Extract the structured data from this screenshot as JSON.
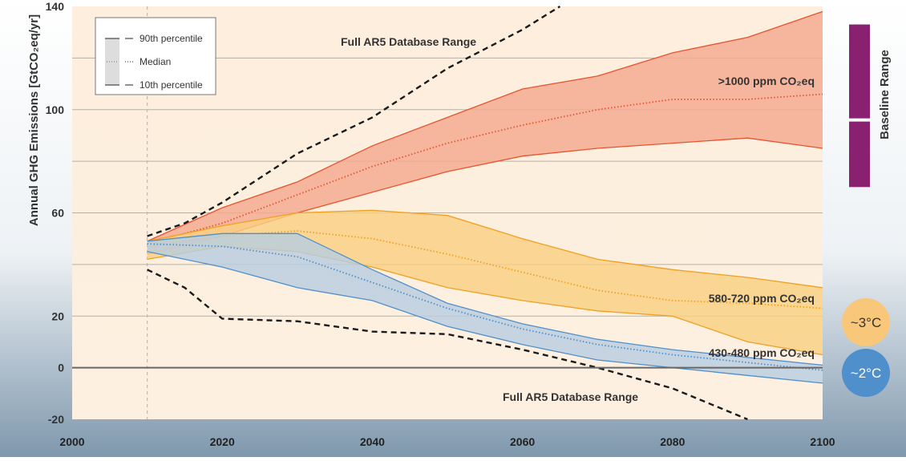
{
  "chart_data": {
    "type": "area",
    "ylabel": "Annual GHG Emissions [GtCO₂eq/yr]",
    "xlim": [
      2000,
      2100
    ],
    "ylim": [
      -20,
      140
    ],
    "x_ticks": [
      "2000",
      "2020",
      "2040",
      "2060",
      "2080",
      "2100"
    ],
    "y_ticks": [
      "-20",
      "0",
      "20",
      "60",
      "100",
      "140"
    ],
    "gridlines_y": [
      0,
      20,
      40,
      60,
      80,
      100,
      120
    ],
    "reference_year": 2010,
    "legend": {
      "placement": "top-left",
      "items": [
        "90th percentile",
        "Median",
        "10th percentile"
      ]
    },
    "series": [
      {
        "name": ">1000 ppm CO₂eq",
        "color": "#e8532f",
        "fill": "#f3a98f",
        "x": [
          2010,
          2020,
          2030,
          2040,
          2050,
          2060,
          2070,
          2080,
          2090,
          2100
        ],
        "p90": [
          49,
          62,
          72,
          86,
          97,
          108,
          113,
          122,
          128,
          138
        ],
        "median": [
          48,
          56,
          67,
          78,
          87,
          94,
          100,
          104,
          104,
          106
        ],
        "p10": [
          44,
          51,
          60,
          68,
          76,
          82,
          85,
          87,
          89,
          85
        ]
      },
      {
        "name": "580-720 ppm CO₂eq",
        "color": "#f0a020",
        "fill": "#f9cf82",
        "x": [
          2010,
          2020,
          2030,
          2040,
          2050,
          2060,
          2070,
          2080,
          2090,
          2100
        ],
        "p90": [
          49,
          55,
          60,
          61,
          59,
          50,
          42,
          38,
          35,
          31
        ],
        "median": [
          47,
          51,
          53,
          50,
          44,
          37,
          30,
          26,
          25,
          23
        ],
        "p10": [
          42,
          47,
          45,
          39,
          31,
          26,
          22,
          20,
          10,
          5
        ]
      },
      {
        "name": "430-480 ppm CO₂eq",
        "color": "#4f8fcc",
        "fill": "#b8cde0",
        "x": [
          2010,
          2020,
          2030,
          2040,
          2050,
          2060,
          2070,
          2080,
          2090,
          2100
        ],
        "p90": [
          49,
          52,
          52,
          38,
          25,
          17,
          11,
          7,
          4,
          1
        ],
        "median": [
          48,
          47,
          43,
          33,
          23,
          15,
          9,
          5,
          2,
          -1
        ],
        "p10": [
          45,
          39,
          31,
          26,
          16,
          9,
          3,
          0,
          -3,
          -6
        ]
      }
    ],
    "database_range": {
      "label_upper": "Full AR5 Database Range",
      "label_lower": "Full AR5 Database Range",
      "upper": {
        "x": [
          2010,
          2015,
          2020,
          2030,
          2040,
          2050,
          2060,
          2065
        ],
        "y": [
          51,
          56,
          64,
          83,
          97,
          116,
          131,
          140
        ]
      },
      "lower": {
        "x": [
          2010,
          2015,
          2020,
          2030,
          2040,
          2050,
          2060,
          2070,
          2080,
          2090
        ],
        "y": [
          38,
          31,
          19,
          18,
          14,
          13,
          7,
          0,
          -8,
          -20
        ]
      }
    },
    "baseline_range": {
      "label": "Baseline Range",
      "y_top": 133,
      "y_mid": 96,
      "y_bottom": 70,
      "color": "#8a2070"
    },
    "temperature_badges": [
      {
        "label": "~3°C",
        "color": "#f9c77a",
        "text_color": "#333333"
      },
      {
        "label": "~2°C",
        "color": "#4f8fcc",
        "text_color": "#ffffff"
      }
    ]
  }
}
